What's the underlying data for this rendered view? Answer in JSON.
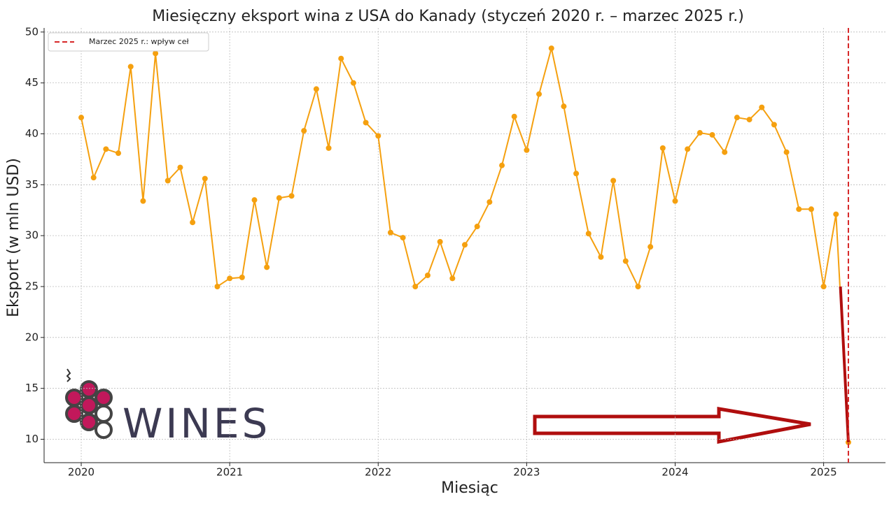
{
  "chart_data": {
    "type": "line",
    "title": "Miesięczny eksport wina z USA do Kanady (styczeń 2020 r. – marzec 2025 r.)",
    "x_label": "Miesiąc",
    "y_label": "Eksport (w mln USD)",
    "x": [
      "2020-01",
      "2020-02",
      "2020-03",
      "2020-04",
      "2020-05",
      "2020-06",
      "2020-07",
      "2020-08",
      "2020-09",
      "2020-10",
      "2020-11",
      "2020-12",
      "2021-01",
      "2021-02",
      "2021-03",
      "2021-04",
      "2021-05",
      "2021-06",
      "2021-07",
      "2021-08",
      "2021-09",
      "2021-10",
      "2021-11",
      "2021-12",
      "2022-01",
      "2022-02",
      "2022-03",
      "2022-04",
      "2022-05",
      "2022-06",
      "2022-07",
      "2022-08",
      "2022-09",
      "2022-10",
      "2022-11",
      "2022-12",
      "2023-01",
      "2023-02",
      "2023-03",
      "2023-04",
      "2023-05",
      "2023-06",
      "2023-07",
      "2023-08",
      "2023-09",
      "2023-10",
      "2023-11",
      "2023-12",
      "2024-01",
      "2024-02",
      "2024-03",
      "2024-04",
      "2024-05",
      "2024-06",
      "2024-07",
      "2024-08",
      "2024-09",
      "2024-10",
      "2024-11",
      "2024-12",
      "2025-01",
      "2025-02",
      "2025-03"
    ],
    "series": [
      {
        "color": "#f5a00f",
        "values": [
          41.6,
          35.7,
          38.5,
          38.1,
          46.6,
          33.4,
          47.9,
          35.4,
          36.7,
          31.3,
          35.6,
          25.0,
          25.8,
          25.9,
          33.5,
          26.9,
          33.7,
          33.9,
          40.3,
          44.4,
          38.6,
          47.4,
          45.0,
          41.1,
          39.8,
          30.3,
          29.8,
          25.0,
          26.1,
          29.4,
          25.8,
          29.1,
          30.9,
          33.3,
          36.9,
          41.7,
          38.4,
          43.9,
          48.4,
          42.7,
          36.1,
          30.2,
          27.9,
          35.4,
          27.5,
          25.0,
          28.9,
          38.6,
          33.4,
          38.5,
          40.1,
          39.9,
          38.2,
          41.6,
          41.4,
          42.6,
          40.9,
          38.2,
          32.6,
          32.6,
          25.0,
          32.1,
          9.7
        ]
      }
    ],
    "vline": {
      "x": "2025-03",
      "label": "Marzec 2025 r.: wpływ ceł",
      "color": "#d62728"
    },
    "legend": "upper left",
    "xlim": [
      "2019-10",
      "2025-06"
    ],
    "xticks": [
      "2020",
      "2021",
      "2022",
      "2023",
      "2024",
      "2025"
    ],
    "ylim": [
      7.7,
      50.4
    ],
    "yticks": [
      10,
      15,
      20,
      25,
      30,
      35,
      40,
      45,
      50
    ],
    "grid": true,
    "watermark": "WINES"
  }
}
